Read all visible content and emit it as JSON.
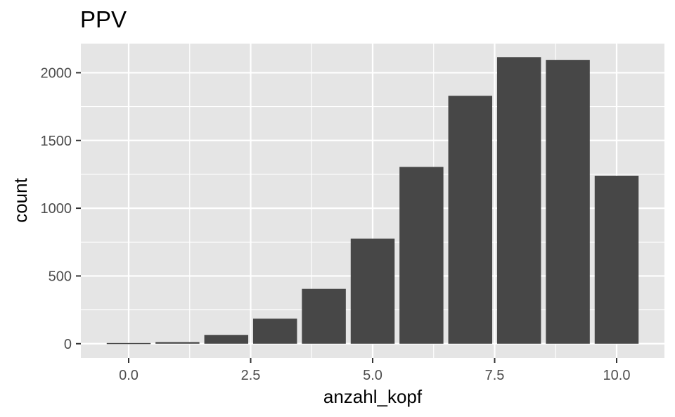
{
  "chart_data": {
    "type": "bar",
    "title": "PPV",
    "xlabel": "anzahl_kopf",
    "ylabel": "count",
    "x": [
      0,
      1,
      2,
      3,
      4,
      5,
      6,
      7,
      8,
      9,
      10
    ],
    "values": [
      5,
      12,
      65,
      185,
      405,
      775,
      1305,
      1830,
      2115,
      2095,
      1240
    ],
    "xlim": [
      -0.98,
      10.98
    ],
    "ylim": [
      -105,
      2215
    ],
    "xticks": [
      0,
      2.5,
      5,
      7.5,
      10
    ],
    "xtick_labels": [
      "0.0",
      "2.5",
      "5.0",
      "7.5",
      "10.0"
    ],
    "yticks": [
      0,
      500,
      1000,
      1500,
      2000
    ],
    "ytick_labels": [
      "0",
      "500",
      "1000",
      "1500",
      "2000"
    ],
    "grid": true,
    "legend": "none",
    "colors": {
      "bar": "#474747",
      "panel": "#e5e5e5",
      "grid": "#ffffff",
      "tick": "#333333"
    }
  }
}
